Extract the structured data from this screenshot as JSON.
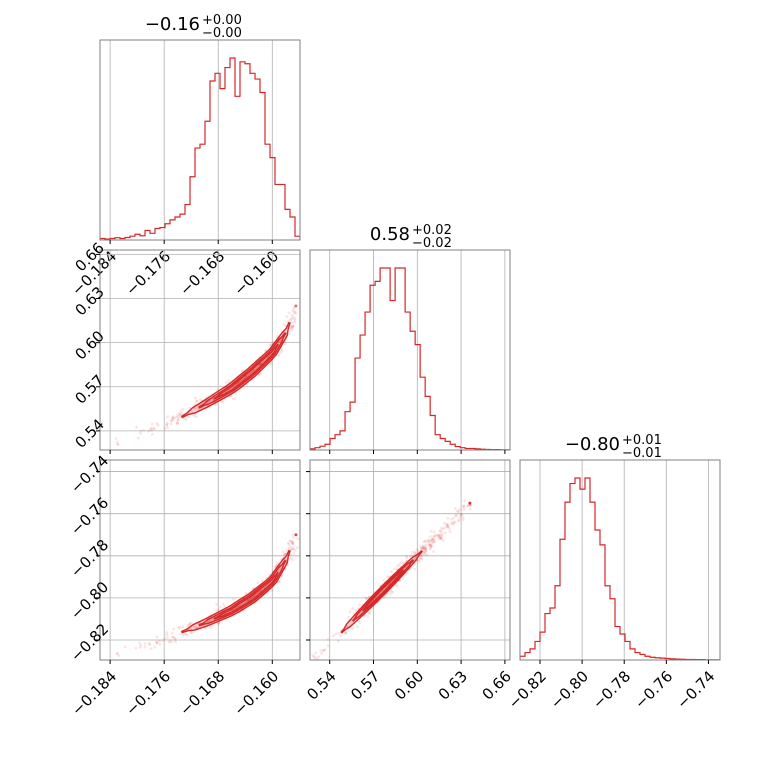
{
  "chart_data": [
    {
      "type": "histogram",
      "panel": "diag-0",
      "title": {
        "value": "−0.16",
        "plus": "+0.00",
        "minus": "−0.00"
      },
      "x_ticks": [
        "−0.184",
        "−0.176",
        "−0.168",
        "−0.160"
      ],
      "x_tick_values": [
        -0.184,
        -0.176,
        -0.168,
        -0.16
      ],
      "xlim": [
        -0.1855,
        -0.1559
      ],
      "bin_edges_start": -0.1855,
      "bin_width": 0.00074,
      "counts": [
        0.008,
        0.005,
        0.008,
        0.012,
        0.008,
        0.013,
        0.02,
        0.03,
        0.022,
        0.05,
        0.035,
        0.06,
        0.065,
        0.085,
        0.105,
        0.12,
        0.135,
        0.185,
        0.33,
        0.48,
        0.5,
        0.62,
        0.83,
        0.87,
        0.79,
        0.9,
        0.95,
        0.75,
        0.93,
        0.92,
        0.87,
        0.84,
        0.77,
        0.5,
        0.43,
        0.29,
        0.29,
        0.16,
        0.12,
        0.02
      ],
      "color": "#d62728"
    },
    {
      "type": "scatter-contour",
      "panel": "0.58-vs-0.16",
      "x_ticks": [],
      "x_tick_values": [
        -0.184,
        -0.176,
        -0.168,
        -0.16
      ],
      "y_ticks": [
        "0.54",
        "0.57",
        "0.60",
        "0.63",
        "0.66"
      ],
      "y_tick_values": [
        0.54,
        0.57,
        0.6,
        0.63,
        0.66
      ],
      "xlim": [
        -0.1855,
        -0.1559
      ],
      "ylim": [
        0.527,
        0.663
      ],
      "ridge": [
        [
          -0.183,
          0.533
        ],
        [
          -0.178,
          0.54
        ],
        [
          -0.174,
          0.548
        ],
        [
          -0.17,
          0.558
        ],
        [
          -0.166,
          0.569
        ],
        [
          -0.163,
          0.58
        ],
        [
          -0.16,
          0.593
        ],
        [
          -0.158,
          0.607
        ],
        [
          -0.1565,
          0.625
        ]
      ],
      "contour_levels": [
        {
          "s_range": [
            0.27,
            0.92
          ],
          "width": 0.0035
        },
        {
          "s_range": [
            0.35,
            0.87
          ],
          "width": 0.0023
        },
        {
          "s_range": [
            0.42,
            0.8
          ],
          "width": 0.0013
        }
      ],
      "color": "#d62728"
    },
    {
      "type": "histogram",
      "panel": "diag-1",
      "title": {
        "value": "0.58",
        "plus": "+0.02",
        "minus": "−0.02"
      },
      "x_ticks": [],
      "x_tick_values": [
        0.54,
        0.57,
        0.6,
        0.63,
        0.66
      ],
      "xlim": [
        0.5265,
        0.6635
      ],
      "bin_edges_start": 0.5265,
      "bin_width": 0.00343,
      "counts": [
        0.006,
        0.012,
        0.02,
        0.03,
        0.06,
        0.08,
        0.1,
        0.2,
        0.25,
        0.48,
        0.6,
        0.72,
        0.86,
        0.88,
        0.95,
        0.95,
        0.78,
        0.95,
        0.95,
        0.72,
        0.62,
        0.55,
        0.38,
        0.28,
        0.18,
        0.08,
        0.06,
        0.045,
        0.03,
        0.018,
        0.012,
        0.008,
        0.008,
        0.006,
        0.004,
        0.003,
        0.002,
        0.002,
        0.001,
        0.001
      ],
      "color": "#d62728"
    },
    {
      "type": "scatter-contour",
      "panel": "0.80-vs-0.16",
      "x_ticks": [
        "−0.184",
        "−0.176",
        "−0.168",
        "−0.160"
      ],
      "x_tick_values": [
        -0.184,
        -0.176,
        -0.168,
        -0.16
      ],
      "y_ticks": [
        "−0.82",
        "−0.80",
        "−0.78",
        "−0.76",
        "−0.74"
      ],
      "y_tick_values": [
        -0.82,
        -0.8,
        -0.78,
        -0.76,
        -0.74
      ],
      "xlim": [
        -0.1855,
        -0.1559
      ],
      "ylim": [
        -0.8295,
        -0.7345
      ],
      "ridge": [
        [
          -0.183,
          -0.826
        ],
        [
          -0.178,
          -0.822
        ],
        [
          -0.174,
          -0.817
        ],
        [
          -0.17,
          -0.812
        ],
        [
          -0.166,
          -0.806
        ],
        [
          -0.163,
          -0.8
        ],
        [
          -0.16,
          -0.792
        ],
        [
          -0.158,
          -0.782
        ],
        [
          -0.1565,
          -0.77
        ]
      ],
      "contour_levels": [
        {
          "s_range": [
            0.27,
            0.92
          ],
          "width": 0.0024
        },
        {
          "s_range": [
            0.35,
            0.87
          ],
          "width": 0.0016
        },
        {
          "s_range": [
            0.42,
            0.8
          ],
          "width": 0.0009
        }
      ],
      "color": "#d62728"
    },
    {
      "type": "scatter-contour",
      "panel": "0.80-vs-0.58",
      "x_ticks": [
        "0.54",
        "0.57",
        "0.60",
        "0.63",
        "0.66"
      ],
      "x_tick_values": [
        0.54,
        0.57,
        0.6,
        0.63,
        0.66
      ],
      "y_ticks": [],
      "y_tick_values": [
        -0.82,
        -0.8,
        -0.78,
        -0.76,
        -0.74
      ],
      "xlim": [
        0.5265,
        0.6635
      ],
      "ylim": [
        -0.8295,
        -0.7345
      ],
      "ridge": [
        [
          0.531,
          -0.829
        ],
        [
          0.55,
          -0.815
        ],
        [
          0.57,
          -0.801
        ],
        [
          0.59,
          -0.787
        ],
        [
          0.61,
          -0.773
        ],
        [
          0.636,
          -0.755
        ]
      ],
      "contour_levels": [
        {
          "s_range": [
            0.18,
            0.73
          ],
          "width": 0.0018
        },
        {
          "s_range": [
            0.26,
            0.67
          ],
          "width": 0.0012
        },
        {
          "s_range": [
            0.33,
            0.6
          ],
          "width": 0.0007
        }
      ],
      "color": "#d62728"
    },
    {
      "type": "histogram",
      "panel": "diag-2",
      "title": {
        "value": "−0.80",
        "plus": "+0.01",
        "minus": "−0.01"
      },
      "x_ticks": [
        "−0.82",
        "−0.80",
        "−0.78",
        "−0.76",
        "−0.74"
      ],
      "x_tick_values": [
        -0.82,
        -0.8,
        -0.78,
        -0.76,
        -0.74
      ],
      "xlim": [
        -0.8295,
        -0.7345
      ],
      "bin_edges_start": -0.8295,
      "bin_width": 0.002375,
      "counts": [
        0.02,
        0.04,
        0.06,
        0.1,
        0.15,
        0.25,
        0.28,
        0.4,
        0.65,
        0.85,
        0.95,
        0.98,
        0.92,
        0.98,
        0.85,
        0.7,
        0.62,
        0.4,
        0.33,
        0.18,
        0.14,
        0.1,
        0.06,
        0.04,
        0.03,
        0.02,
        0.015,
        0.012,
        0.01,
        0.008,
        0.006,
        0.005,
        0.004,
        0.003,
        0.003,
        0.002,
        0.002,
        0.001,
        0.001,
        0.001
      ],
      "color": "#d62728"
    }
  ]
}
